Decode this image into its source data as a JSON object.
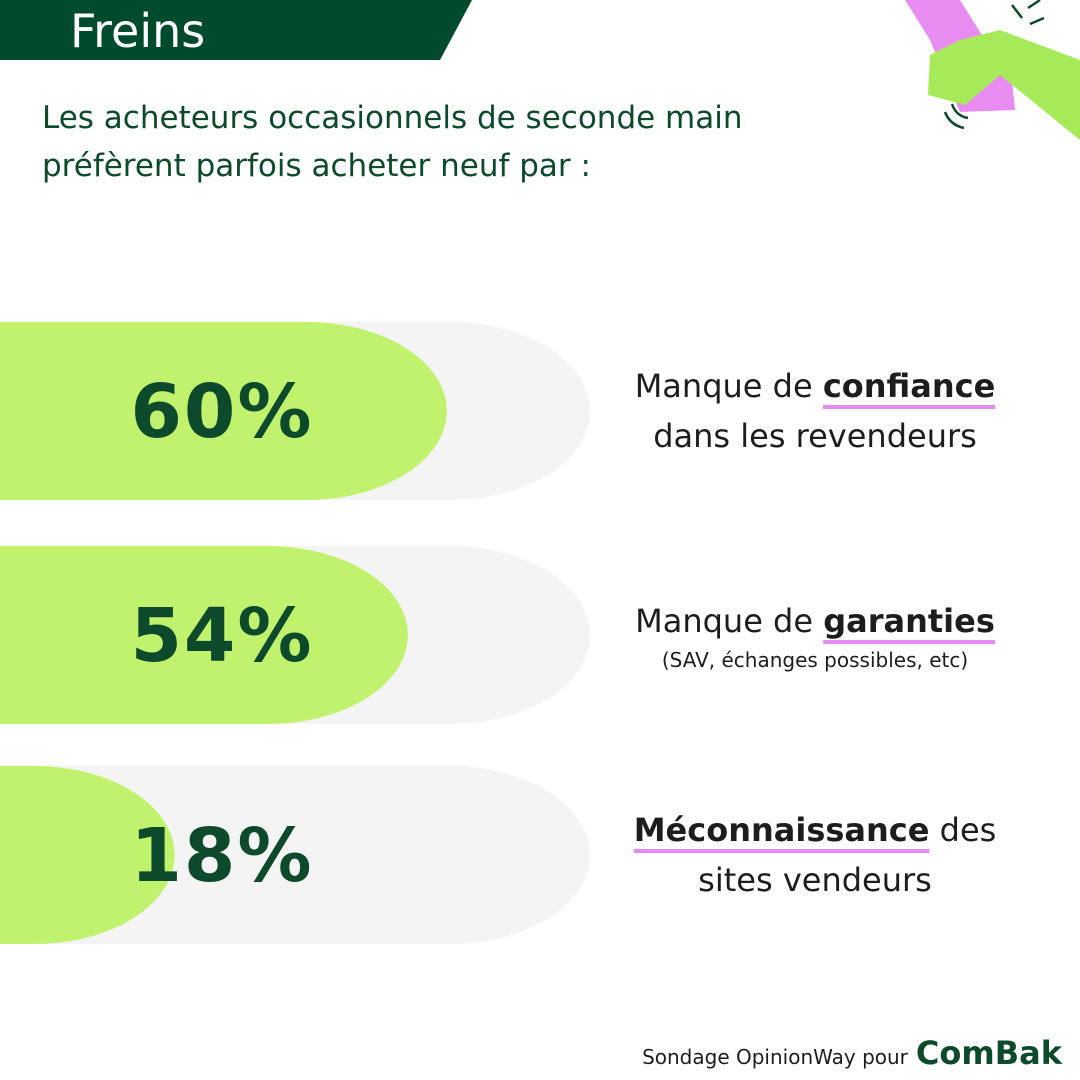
{
  "chart_data": {
    "type": "bar",
    "title": "Freins",
    "subtitle": [
      "Les acheteurs occasionnels de seconde main",
      "préfèrent parfois acheter neuf par :"
    ],
    "categories": [
      [
        [
          {
            "text": "Manque de "
          },
          {
            "text": "confiance",
            "bold": true
          }
        ],
        [
          {
            "text": "dans les revendeurs"
          }
        ]
      ],
      [
        [
          {
            "text": "Manque de "
          },
          {
            "text": "garanties",
            "bold": true
          }
        ],
        [
          {
            "text": "(SAV, échanges possibles, etc)",
            "small": true
          }
        ]
      ],
      [
        [
          {
            "text": "Méconnaissance",
            "bold": true
          },
          {
            "text": " des"
          }
        ],
        [
          {
            "text": "sites vendeurs"
          }
        ]
      ]
    ],
    "values": [
      60,
      54,
      18
    ],
    "value_labels": [
      "60%",
      "54%",
      "18%"
    ],
    "color": "#c0f26e",
    "track_color": "#f4f4f4",
    "label_color": "#0d4a2b",
    "source": "Sondage OpinionWay pour",
    "brand": "ComBak"
  }
}
